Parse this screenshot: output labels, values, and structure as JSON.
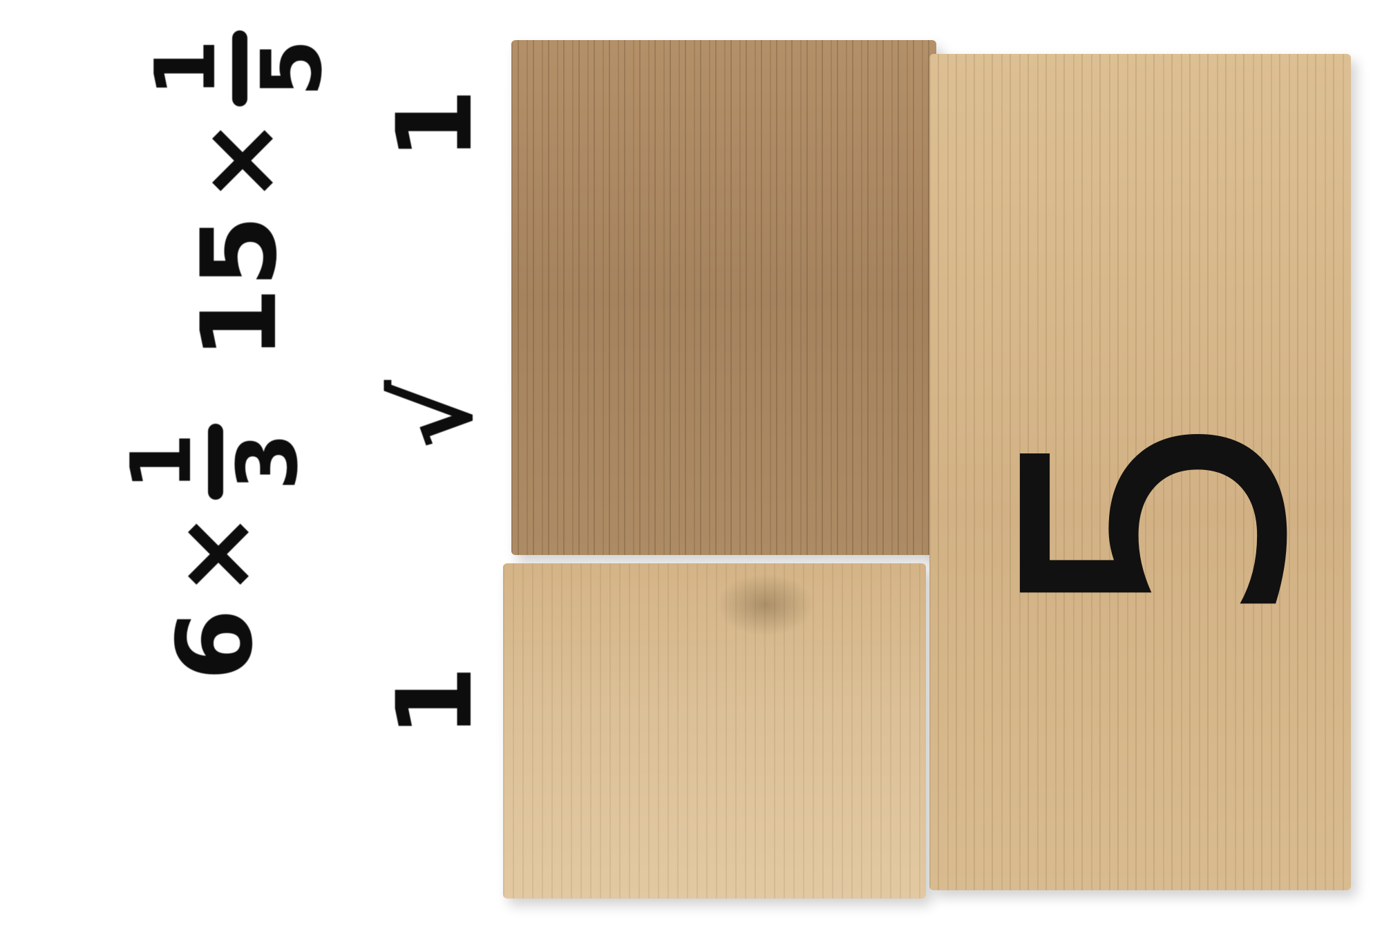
{
  "expressions": [
    {
      "operand": "6",
      "operator": "×",
      "fraction": {
        "numerator": "1",
        "denominator": "3"
      },
      "mark": "1"
    },
    {
      "operand": "15",
      "operator": "×",
      "fraction": {
        "numerator": "1",
        "denominator": "5"
      },
      "mark": "√"
    },
    {
      "mark": "1"
    }
  ],
  "block_digit": "5",
  "colors": {
    "background": "#ffffff",
    "ink": "#0d0d0d",
    "wood_dark": "#a5835e",
    "wood_light": "#d2b285"
  }
}
